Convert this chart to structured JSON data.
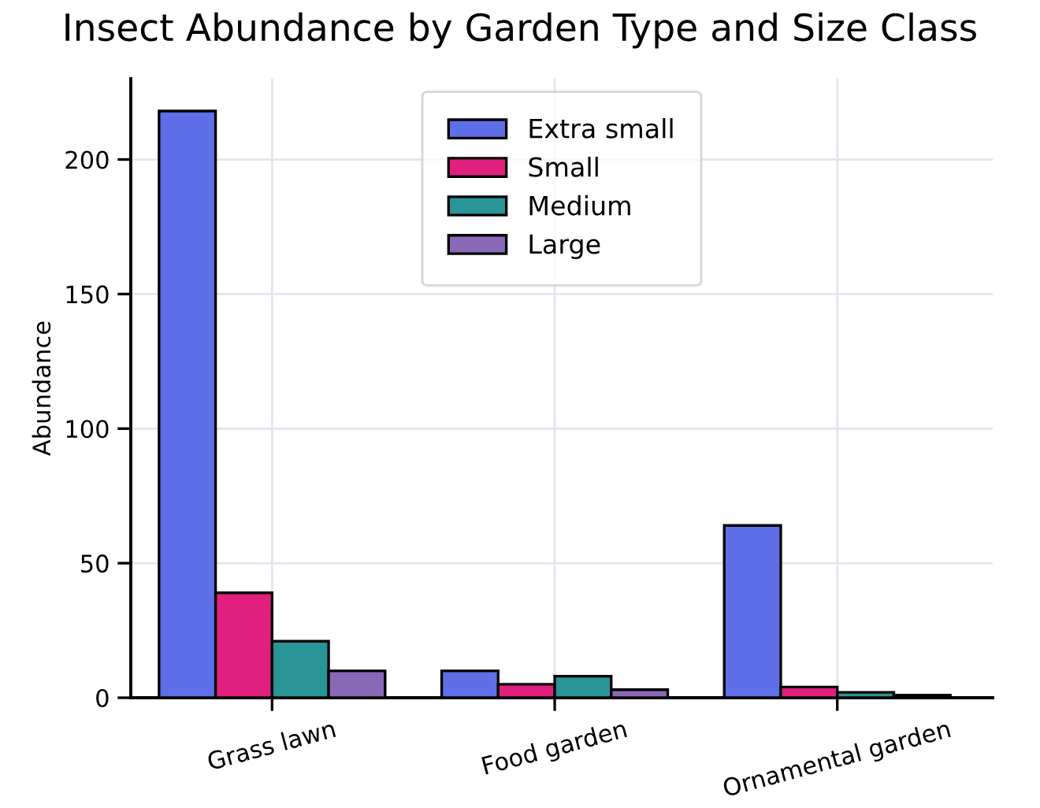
{
  "chart_data": {
    "type": "bar",
    "title": "Insect Abundance by Garden Type and Size Class",
    "ylabel": "Abundance",
    "categories": [
      "Grass lawn",
      "Food garden",
      "Ornamental garden"
    ],
    "series": [
      {
        "name": "Extra small",
        "color": "#5f6fe8",
        "values": [
          218,
          10,
          64
        ]
      },
      {
        "name": "Small",
        "color": "#e01f7e",
        "values": [
          39,
          5,
          4
        ]
      },
      {
        "name": "Medium",
        "color": "#2a9496",
        "values": [
          21,
          8,
          2
        ]
      },
      {
        "name": "Large",
        "color": "#8a68b8",
        "values": [
          10,
          3,
          1
        ]
      }
    ],
    "ylim": [
      0,
      230
    ],
    "yticks": [
      0,
      50,
      100,
      150,
      200
    ],
    "grid": true,
    "legend": "top"
  }
}
